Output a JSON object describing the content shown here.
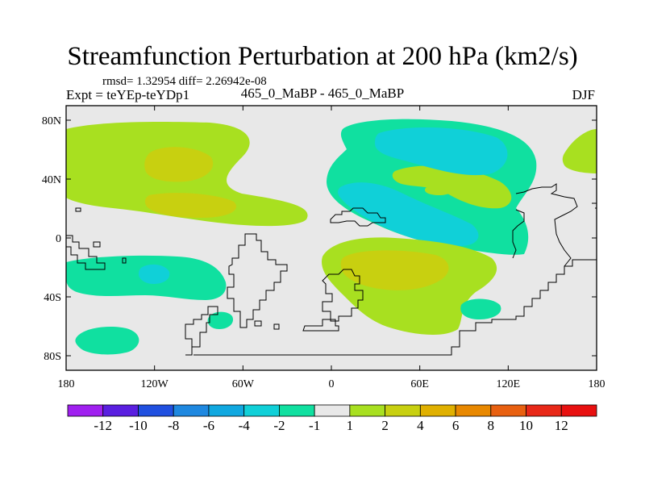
{
  "title": "Streamfunction Perturbation at 200 hPa (km2/s)",
  "stats": "rmsd= 1.32954 diff= 2.26942e-08",
  "experiment": "Expt = teYEp-teYDp1",
  "comparison": "465_0_MaBP - 465_0_MaBP",
  "season": "DJF",
  "lat_labels": [
    "80N",
    "40N",
    "0",
    "40S",
    "80S"
  ],
  "lon_labels": [
    "180",
    "120W",
    "60W",
    "0",
    "60E",
    "120E",
    "180"
  ],
  "legend": {
    "labels": [
      "-12",
      "-10",
      "-8",
      "-6",
      "-4",
      "-2",
      "-1",
      "1",
      "2",
      "4",
      "6",
      "8",
      "10",
      "12"
    ],
    "colors": [
      "#a020f0",
      "#5a1fe0",
      "#2050e0",
      "#1e88e0",
      "#10a8e0",
      "#10d0d8",
      "#10e0a0",
      "#e8e8e8",
      "#a8e020",
      "#c8d010",
      "#e0b000",
      "#e88800",
      "#e86010",
      "#e82818",
      "#e81010"
    ]
  },
  "shading": {
    "background": "#e8e8e8",
    "green": "#a8e020",
    "yellow": "#c8d010",
    "seafoam": "#10e0a0",
    "cyan": "#10d0d8"
  }
}
